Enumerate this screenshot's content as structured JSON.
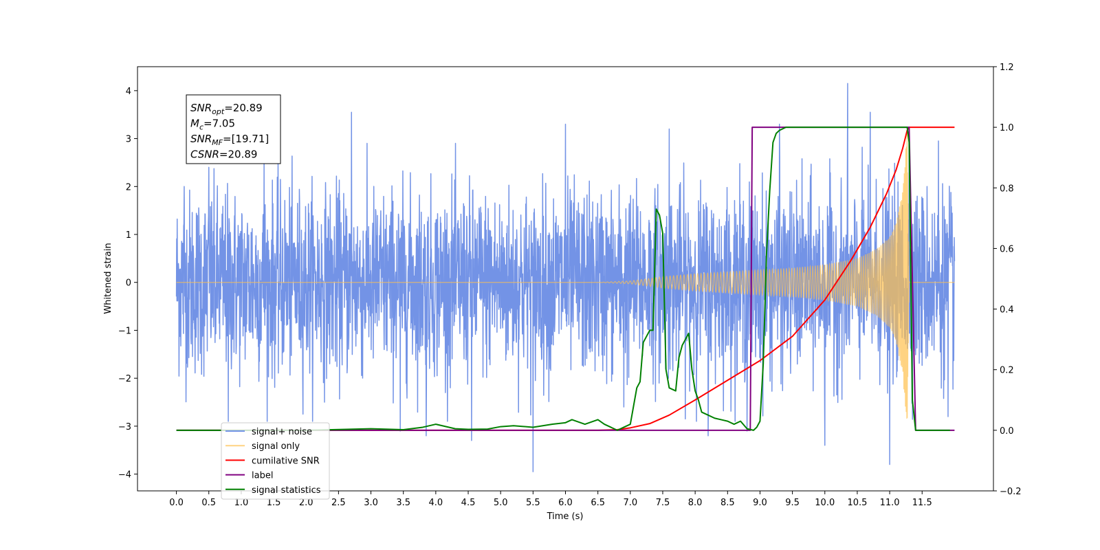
{
  "chart_data": {
    "type": "line",
    "title": "",
    "xlabel": "Time (s)",
    "ylabel": "Whitened strain",
    "y2label": "",
    "xlim": [
      -0.6,
      12.6
    ],
    "ylim": [
      -4.35,
      4.5
    ],
    "y2lim": [
      -0.2,
      1.2
    ],
    "xticks": [
      "0.0",
      "0.5",
      "1.0",
      "1.5",
      "2.0",
      "2.5",
      "3.0",
      "3.5",
      "4.0",
      "4.5",
      "5.0",
      "5.5",
      "6.0",
      "6.5",
      "7.0",
      "7.5",
      "8.0",
      "8.5",
      "9.0",
      "9.5",
      "10.0",
      "10.5",
      "11.0",
      "11.5"
    ],
    "yticks": [
      "4",
      "3",
      "2",
      "1",
      "0",
      "−1",
      "−2",
      "−3",
      "−4"
    ],
    "y2ticks": [
      "1.2",
      "1.0",
      "0.8",
      "0.6",
      "0.4",
      "0.2",
      "0.0",
      "−0.2"
    ],
    "grid": false,
    "legend_position": "lower-left",
    "annotation": {
      "lines": [
        {
          "base": "SNR",
          "sub": "opt",
          "rest": "=20.89"
        },
        {
          "base": "M",
          "sub": "c",
          "rest": "=7.05"
        },
        {
          "base": "SNR",
          "sub": "MF",
          "rest": "=[19.71]"
        },
        {
          "base": "CSNR",
          "sub": "",
          "rest": "=20.89"
        }
      ]
    },
    "series": [
      {
        "name": "signal+ noise",
        "axis": "left",
        "color": "#7393e6",
        "kind": "noise",
        "t_range": [
          0.0,
          12.0
        ],
        "amplitude": 0.95,
        "spikes": [
          [
            0.12,
            2.0
          ],
          [
            0.5,
            2.4
          ],
          [
            0.8,
            -2.9
          ],
          [
            1.35,
            2.6
          ],
          [
            2.7,
            3.55
          ],
          [
            3.45,
            -3.1
          ],
          [
            3.85,
            -3.2
          ],
          [
            4.55,
            -3.3
          ],
          [
            5.5,
            -3.95
          ],
          [
            6.0,
            3.3
          ],
          [
            6.9,
            -2.6
          ],
          [
            7.6,
            3.2
          ],
          [
            8.2,
            -3.2
          ],
          [
            8.8,
            -3.1
          ],
          [
            9.3,
            3.3
          ],
          [
            10.0,
            -3.4
          ],
          [
            10.35,
            4.15
          ],
          [
            10.7,
            3.55
          ],
          [
            11.0,
            -3.8
          ],
          [
            11.3,
            3.2
          ],
          [
            11.75,
            2.95
          ],
          [
            11.9,
            -2.8
          ]
        ]
      },
      {
        "name": "signal only",
        "axis": "left",
        "color": "#ffc04d",
        "kind": "chirp",
        "t_range": [
          0.0,
          12.0
        ],
        "envelope_x": [
          0.0,
          6.5,
          7.0,
          7.5,
          8.0,
          8.5,
          9.0,
          9.5,
          10.0,
          10.5,
          10.8,
          11.0,
          11.1,
          11.2,
          11.27,
          11.3,
          12.0
        ],
        "envelope_y": [
          0.0,
          0.0,
          0.03,
          0.12,
          0.18,
          0.22,
          0.26,
          0.3,
          0.37,
          0.5,
          0.7,
          0.95,
          1.25,
          1.9,
          3.2,
          0.0,
          0.0
        ]
      },
      {
        "name": "cumilative SNR",
        "axis": "right",
        "color": "#ff0000",
        "kind": "line",
        "x": [
          0.0,
          6.5,
          6.8,
          7.0,
          7.3,
          7.6,
          8.0,
          8.5,
          9.0,
          9.5,
          10.0,
          10.4,
          10.7,
          10.95,
          11.1,
          11.2,
          11.27,
          11.3,
          12.0
        ],
        "y": [
          0.0,
          0.0,
          0.002,
          0.008,
          0.022,
          0.05,
          0.1,
          0.165,
          0.23,
          0.31,
          0.43,
          0.56,
          0.67,
          0.78,
          0.86,
          0.93,
          0.99,
          1.0,
          1.0
        ]
      },
      {
        "name": "label",
        "axis": "right",
        "color": "#800080",
        "kind": "line",
        "x": [
          0.0,
          8.85,
          8.88,
          11.3,
          11.4,
          12.0
        ],
        "y": [
          0.0,
          0.0,
          1.0,
          1.0,
          0.0,
          0.0
        ]
      },
      {
        "name": "signal statistics",
        "axis": "right",
        "color": "#008000",
        "kind": "line",
        "x": [
          0.0,
          2.0,
          3.0,
          3.5,
          3.8,
          4.0,
          4.3,
          4.5,
          4.8,
          5.0,
          5.2,
          5.5,
          5.8,
          6.0,
          6.1,
          6.3,
          6.5,
          6.6,
          6.7,
          6.8,
          6.9,
          7.0,
          7.1,
          7.15,
          7.2,
          7.3,
          7.35,
          7.4,
          7.45,
          7.5,
          7.55,
          7.6,
          7.7,
          7.75,
          7.8,
          7.9,
          7.95,
          8.0,
          8.05,
          8.1,
          8.2,
          8.3,
          8.4,
          8.5,
          8.6,
          8.7,
          8.8,
          8.9,
          8.95,
          9.0,
          9.05,
          9.1,
          9.15,
          9.2,
          9.25,
          9.3,
          9.4,
          9.5,
          9.8,
          11.2,
          11.27,
          11.3,
          11.35,
          11.4,
          11.93
        ],
        "y": [
          0.0,
          0.0,
          0.005,
          0.002,
          0.01,
          0.02,
          0.005,
          0.003,
          0.004,
          0.012,
          0.015,
          0.01,
          0.02,
          0.025,
          0.035,
          0.02,
          0.035,
          0.02,
          0.01,
          0.0,
          0.01,
          0.02,
          0.14,
          0.16,
          0.29,
          0.33,
          0.33,
          0.73,
          0.71,
          0.65,
          0.2,
          0.14,
          0.13,
          0.24,
          0.28,
          0.32,
          0.2,
          0.13,
          0.1,
          0.06,
          0.05,
          0.04,
          0.035,
          0.03,
          0.02,
          0.03,
          0.005,
          0.0,
          0.01,
          0.03,
          0.22,
          0.58,
          0.79,
          0.95,
          0.98,
          0.99,
          1.0,
          1.0,
          1.0,
          1.0,
          1.0,
          0.95,
          0.1,
          0.0,
          0.0
        ]
      }
    ],
    "legend_entries": [
      "signal+ noise",
      "signal only",
      "cumilative SNR",
      "label",
      "signal statistics"
    ]
  }
}
